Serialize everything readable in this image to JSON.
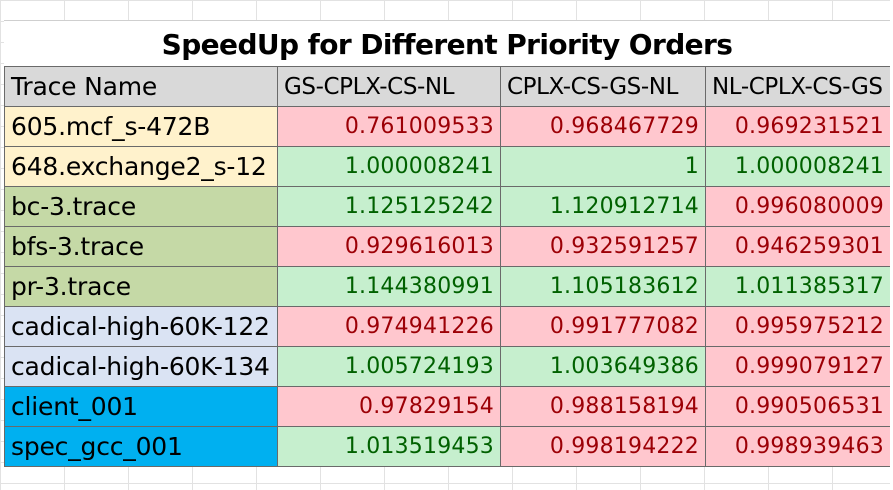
{
  "title": "SpeedUp for Different Priority Orders",
  "columns": [
    "Trace Name",
    "GS-CPLX-CS-NL",
    "CPLX-CS-GS-NL",
    "NL-CPLX-CS-GS"
  ],
  "colors": {
    "spec": "#fff2cc",
    "graph": "#c5d9a6",
    "cadical": "#dae3f3",
    "client": "#00b0f0",
    "good_fill": "#c6efce",
    "good_text": "#006100",
    "bad_fill": "#ffc7ce",
    "bad_text": "#9c0006",
    "header": "#d9d9d9"
  },
  "rows": [
    {
      "name": "605.mcf_s-472B",
      "group": "spec",
      "values": [
        "0.761009533",
        "0.968467729",
        "0.969231521"
      ],
      "status": [
        "bad",
        "bad",
        "bad"
      ]
    },
    {
      "name": "648.exchange2_s-12",
      "group": "spec",
      "values": [
        "1.000008241",
        "1",
        "1.000008241"
      ],
      "status": [
        "good",
        "good",
        "good"
      ]
    },
    {
      "name": "bc-3.trace",
      "group": "graph",
      "values": [
        "1.125125242",
        "1.120912714",
        "0.996080009"
      ],
      "status": [
        "good",
        "good",
        "bad"
      ]
    },
    {
      "name": "bfs-3.trace",
      "group": "graph",
      "values": [
        "0.929616013",
        "0.932591257",
        "0.946259301"
      ],
      "status": [
        "bad",
        "bad",
        "bad"
      ]
    },
    {
      "name": "pr-3.trace",
      "group": "graph",
      "values": [
        "1.144380991",
        "1.105183612",
        "1.011385317"
      ],
      "status": [
        "good",
        "good",
        "good"
      ]
    },
    {
      "name": "cadical-high-60K-122",
      "group": "cadical",
      "values": [
        "0.974941226",
        "0.991777082",
        "0.995975212"
      ],
      "status": [
        "bad",
        "bad",
        "bad"
      ]
    },
    {
      "name": "cadical-high-60K-134",
      "group": "cadical",
      "values": [
        "1.005724193",
        "1.003649386",
        "0.999079127"
      ],
      "status": [
        "good",
        "good",
        "bad"
      ]
    },
    {
      "name": "client_001",
      "group": "client",
      "values": [
        "0.97829154",
        "0.988158194",
        "0.990506531"
      ],
      "status": [
        "bad",
        "bad",
        "bad"
      ]
    },
    {
      "name": "spec_gcc_001",
      "group": "client",
      "values": [
        "1.013519453",
        "0.998194222",
        "0.998939463"
      ],
      "status": [
        "good",
        "bad",
        "bad"
      ]
    }
  ]
}
